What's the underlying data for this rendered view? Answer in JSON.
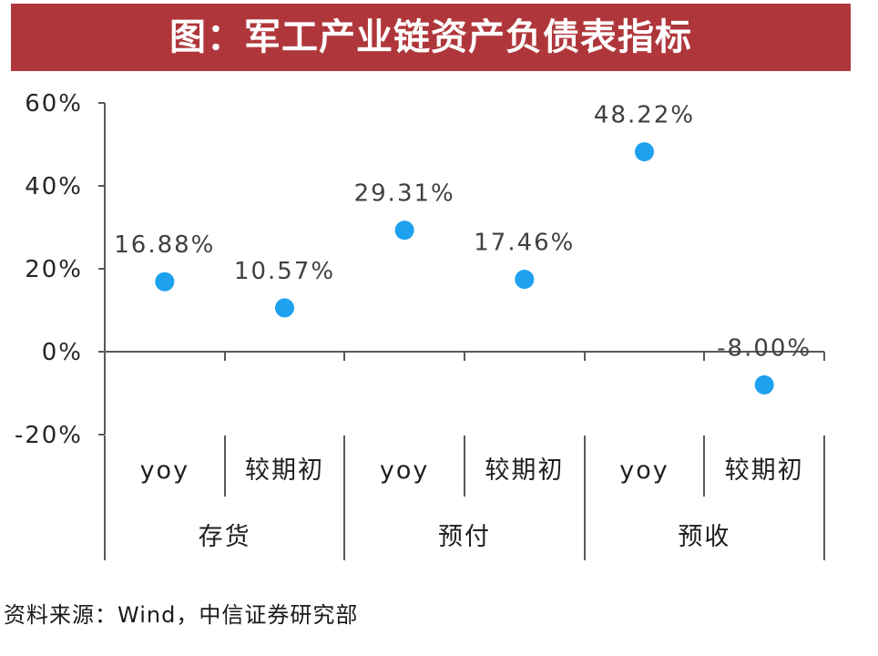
{
  "chart_data": {
    "type": "scatter",
    "title": "图：军工产业链资产负债表指标",
    "categories": [
      {
        "group": "存货",
        "items": [
          "yoy",
          "较期初"
        ]
      },
      {
        "group": "预付",
        "items": [
          "yoy",
          "较期初"
        ]
      },
      {
        "group": "预收",
        "items": [
          "yoy",
          "较期初"
        ]
      }
    ],
    "series": [
      {
        "values": [
          16.88,
          10.57,
          29.31,
          17.46,
          48.22,
          -8.0
        ],
        "data_labels": [
          "16.88%",
          "10.57%",
          "29.31%",
          "17.46%",
          "48.22%",
          "-8.00%"
        ]
      }
    ],
    "ylim": [
      -20,
      60
    ],
    "yticks": [
      {
        "value": 60,
        "label": "60%"
      },
      {
        "value": 40,
        "label": "40%"
      },
      {
        "value": 20,
        "label": "20%"
      },
      {
        "value": 0,
        "label": "0%"
      },
      {
        "value": -20,
        "label": "-20%"
      }
    ],
    "grid": false,
    "legend": false
  },
  "source": "资料来源：Wind，中信证券研究部",
  "colors": {
    "banner": "#AF373B",
    "title_text": "#FFFFFF",
    "marker": "#1EA1EE",
    "axis": "#595959"
  }
}
